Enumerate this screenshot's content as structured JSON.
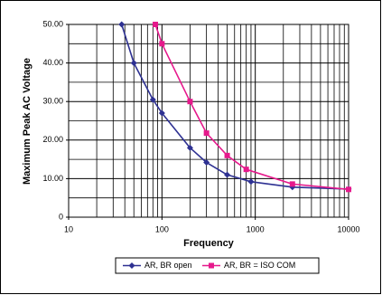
{
  "chart_data": {
    "type": "line",
    "x_label": "Frequency",
    "y_label": "Maximum Peak AC Voltage",
    "x_log": true,
    "xlim": [
      10,
      10000
    ],
    "xticks": [
      10,
      100,
      1000,
      10000
    ],
    "ylim": [
      0,
      50
    ],
    "yticks": [
      0,
      {
        "value": 10,
        "label": "10.00"
      },
      {
        "value": 20,
        "label": "20.00"
      },
      {
        "value": 30,
        "label": "30.00"
      },
      {
        "value": 40,
        "label": "40.00"
      },
      {
        "value": 50,
        "label": "50.00"
      }
    ],
    "y_minor_ticks": [
      5,
      15,
      25,
      35,
      45
    ],
    "grid": true,
    "legend": "bottom",
    "series": [
      {
        "name": "AR, BR open",
        "color": "#2e3192",
        "marker": "diamond",
        "x": [
          37,
          50,
          80,
          100,
          200,
          300,
          500,
          900,
          2500,
          10000
        ],
        "values": [
          50,
          40,
          30.5,
          27,
          18,
          14.2,
          11,
          9.2,
          7.8,
          7.3
        ]
      },
      {
        "name": "AR, BR = ISO COM",
        "color": "#e6198c",
        "marker": "square",
        "x": [
          85,
          100,
          200,
          300,
          500,
          800,
          2500,
          10000
        ],
        "values": [
          50,
          45,
          30,
          21.8,
          16,
          12.4,
          8.6,
          7.2
        ]
      }
    ]
  }
}
